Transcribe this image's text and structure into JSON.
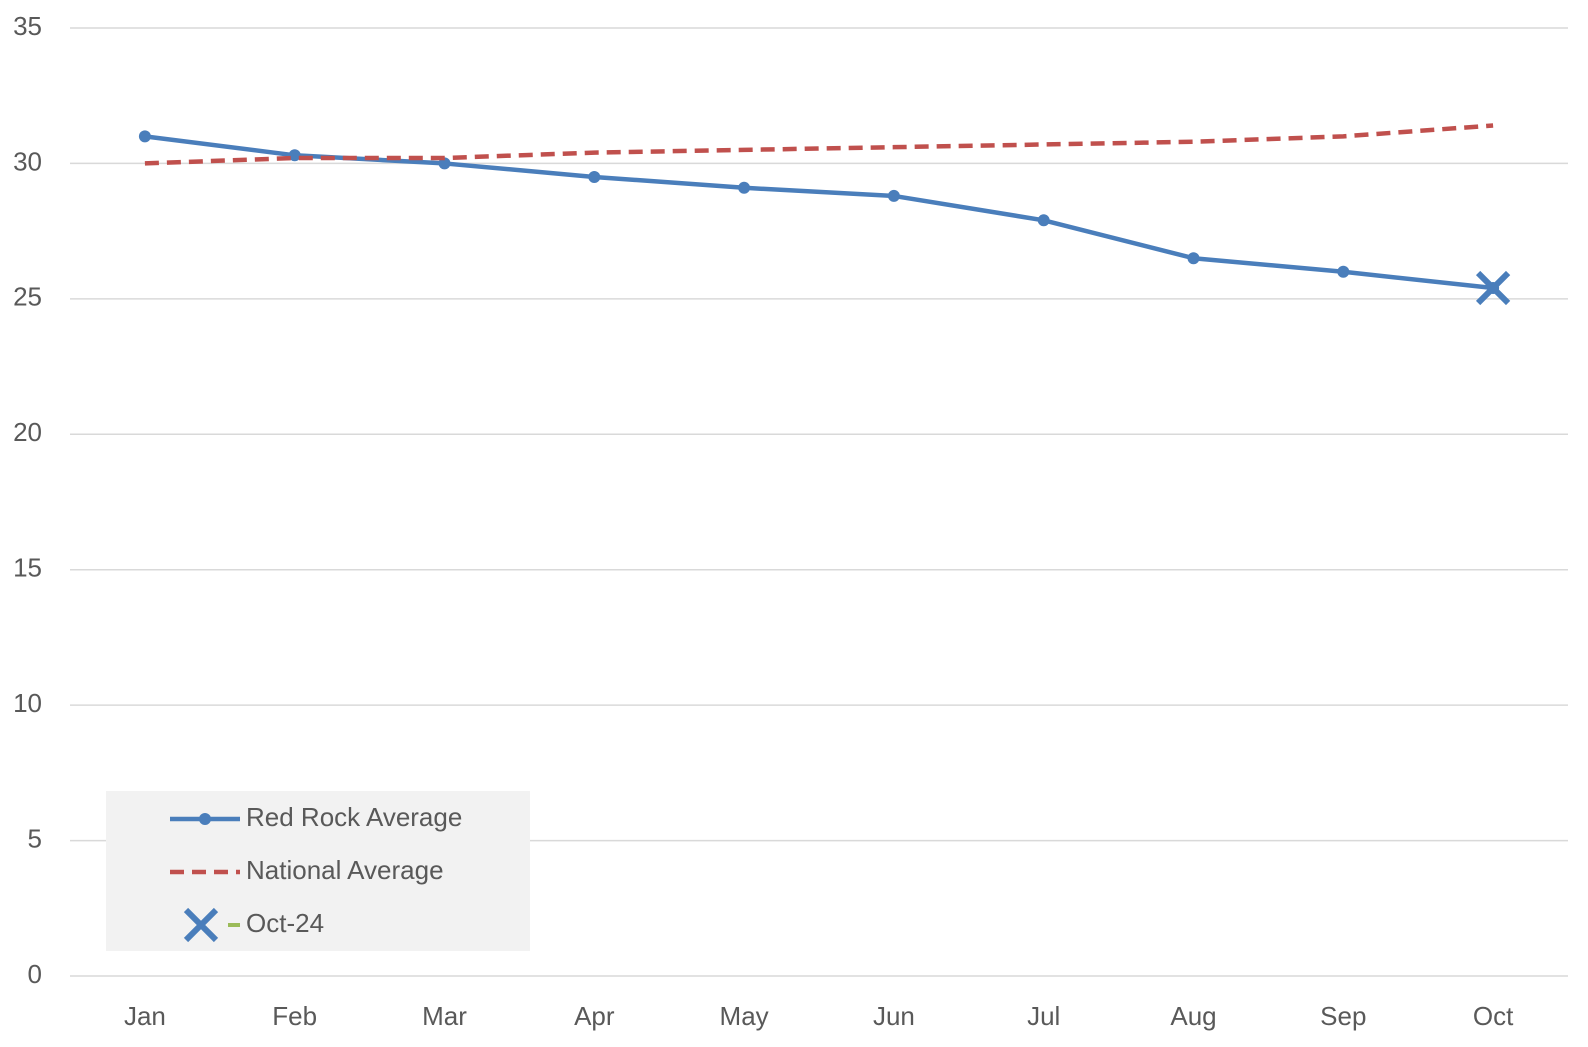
{
  "chart_data": {
    "type": "line",
    "categories": [
      "Jan",
      "Feb",
      "Mar",
      "Apr",
      "May",
      "Jun",
      "Jul",
      "Aug",
      "Sep",
      "Oct"
    ],
    "series": [
      {
        "name": "Red Rock Average",
        "color": "#4a7ebb",
        "style": "solid",
        "marker": "dot",
        "values": [
          31.0,
          30.3,
          30.0,
          29.5,
          29.1,
          28.8,
          27.9,
          26.5,
          26.0,
          25.4
        ]
      },
      {
        "name": "National Average",
        "color": "#c0504d",
        "style": "dashed",
        "marker": "none",
        "values": [
          30.0,
          30.2,
          30.2,
          30.4,
          30.5,
          30.6,
          30.7,
          30.8,
          31.0,
          31.4
        ]
      },
      {
        "name": "Oct-24",
        "color": "#4a7ebb",
        "line_color": "#9bbb59",
        "style": "none",
        "marker": "x",
        "values": [
          null,
          null,
          null,
          null,
          null,
          null,
          null,
          null,
          null,
          25.4
        ]
      }
    ],
    "ylim": [
      0,
      35
    ],
    "yticks": [
      0,
      5,
      10,
      15,
      20,
      25,
      30,
      35
    ],
    "grid": true,
    "legend": "bottom-left"
  }
}
